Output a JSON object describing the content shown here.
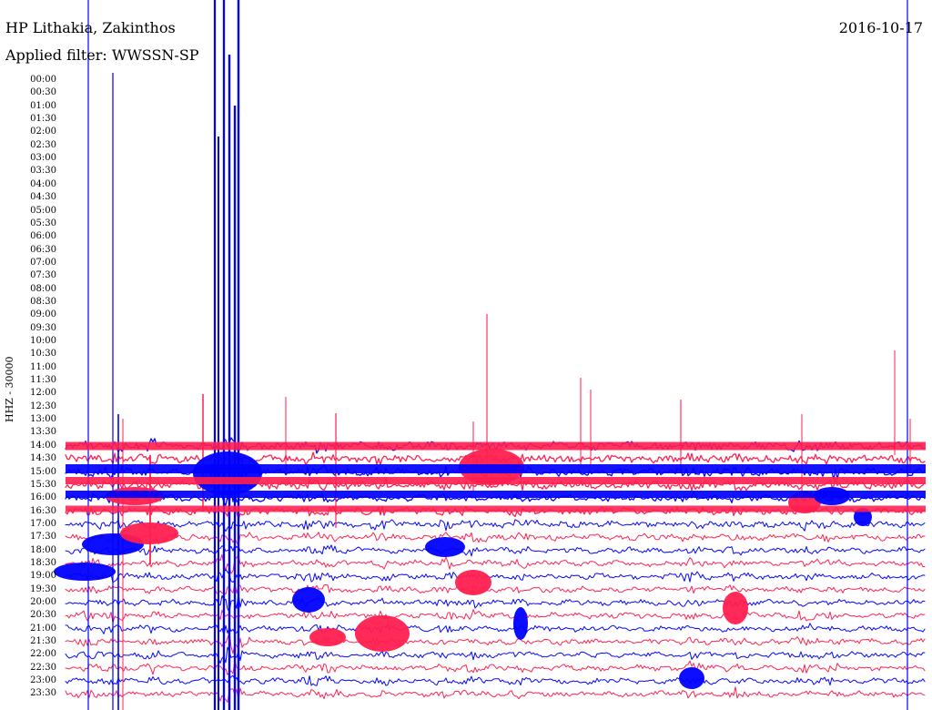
{
  "header": {
    "station": "HP Lithakia, Zakinthos",
    "filter": "Applied filter: WWSSN-SP",
    "date": "2016-10-17"
  },
  "axis": {
    "channel_scale": "HHZ - 30000"
  },
  "colors": {
    "background": "#ffffff",
    "text": "#000000",
    "trace_blue": "#0000ff",
    "trace_red": "#ff1f4f"
  },
  "chart_data": {
    "type": "line",
    "title": "HP Lithakia, Zakinthos",
    "subtitle": "Applied filter: WWSSN-SP",
    "date": "2016-10-17",
    "ylabel": "HHZ - 30000",
    "rows": [
      {
        "time": "00:00",
        "color": "blue"
      },
      {
        "time": "00:30",
        "color": "red"
      },
      {
        "time": "01:00",
        "color": "blue"
      },
      {
        "time": "01:30",
        "color": "red"
      },
      {
        "time": "02:00",
        "color": "blue"
      },
      {
        "time": "02:30",
        "color": "red"
      },
      {
        "time": "03:00",
        "color": "blue"
      },
      {
        "time": "03:30",
        "color": "red"
      },
      {
        "time": "04:00",
        "color": "blue"
      },
      {
        "time": "04:30",
        "color": "red"
      },
      {
        "time": "05:00",
        "color": "blue"
      },
      {
        "time": "05:30",
        "color": "red"
      },
      {
        "time": "06:00",
        "color": "blue"
      },
      {
        "time": "06:30",
        "color": "red"
      },
      {
        "time": "07:00",
        "color": "blue"
      },
      {
        "time": "07:30",
        "color": "red"
      },
      {
        "time": "08:00",
        "color": "blue"
      },
      {
        "time": "08:30",
        "color": "red"
      },
      {
        "time": "09:00",
        "color": "blue"
      },
      {
        "time": "09:30",
        "color": "red"
      },
      {
        "time": "10:00",
        "color": "blue"
      },
      {
        "time": "10:30",
        "color": "red"
      },
      {
        "time": "11:00",
        "color": "blue"
      },
      {
        "time": "11:30",
        "color": "red"
      },
      {
        "time": "12:00",
        "color": "blue"
      },
      {
        "time": "12:30",
        "color": "red"
      },
      {
        "time": "13:00",
        "color": "blue"
      },
      {
        "time": "13:30",
        "color": "red"
      },
      {
        "time": "14:00",
        "color": "blue"
      },
      {
        "time": "14:30",
        "color": "red"
      },
      {
        "time": "15:00",
        "color": "blue"
      },
      {
        "time": "15:30",
        "color": "red"
      },
      {
        "time": "16:00",
        "color": "blue"
      },
      {
        "time": "16:30",
        "color": "red"
      },
      {
        "time": "17:00",
        "color": "blue"
      },
      {
        "time": "17:30",
        "color": "red"
      },
      {
        "time": "18:00",
        "color": "blue"
      },
      {
        "time": "18:30",
        "color": "red"
      },
      {
        "time": "19:00",
        "color": "blue"
      },
      {
        "time": "19:30",
        "color": "red"
      },
      {
        "time": "20:00",
        "color": "blue"
      },
      {
        "time": "20:30",
        "color": "red"
      },
      {
        "time": "21:00",
        "color": "blue"
      },
      {
        "time": "21:30",
        "color": "red"
      },
      {
        "time": "22:00",
        "color": "blue"
      },
      {
        "time": "22:30",
        "color": "red"
      },
      {
        "time": "23:00",
        "color": "blue"
      },
      {
        "time": "23:30",
        "color": "red"
      }
    ]
  }
}
